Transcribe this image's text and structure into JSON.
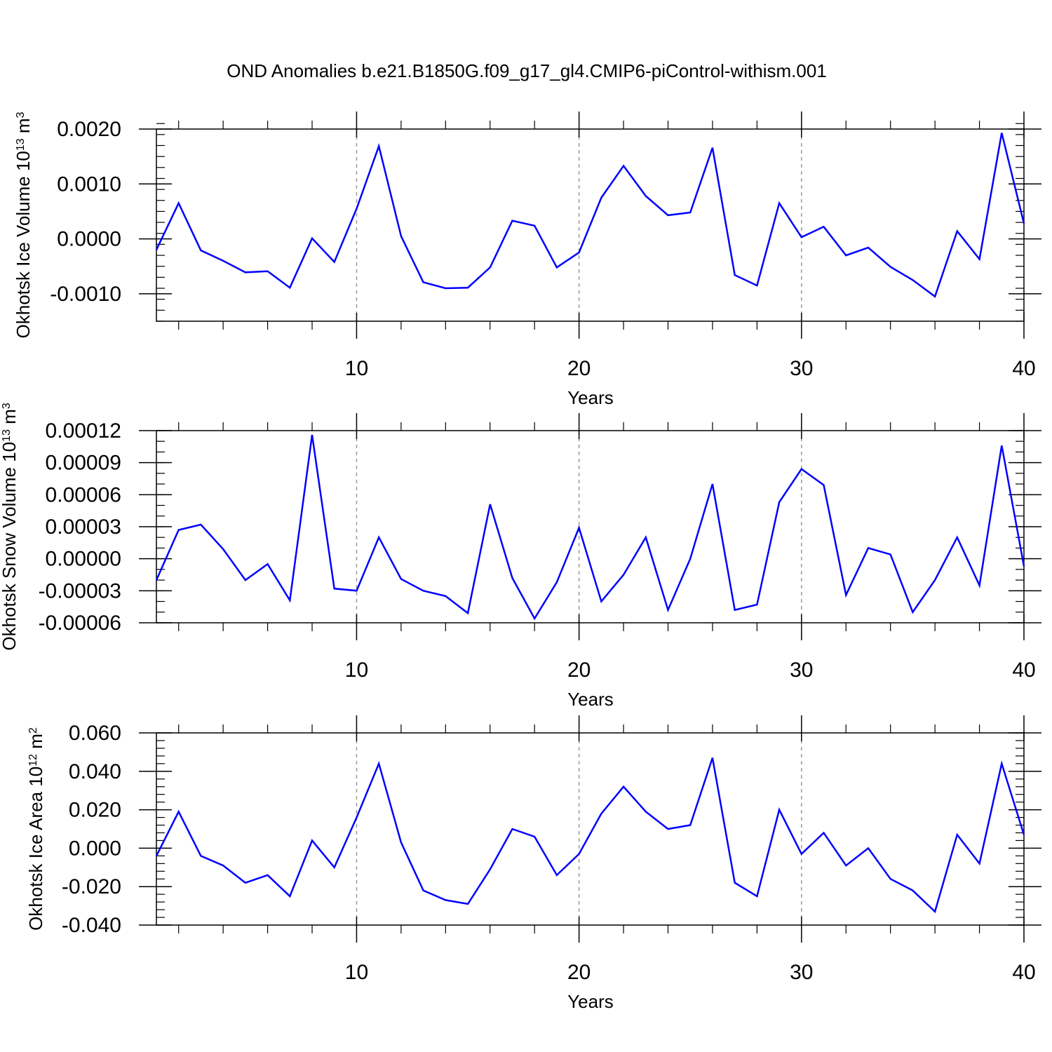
{
  "title": "OND Anomalies b.e21.B1850G.f09_g17_gl4.CMIP6-piControl-withism.001",
  "line_color": "#0000ff",
  "chart_data": [
    {
      "type": "line",
      "xlabel": "Years",
      "ylabel": {
        "text": "Okhotsk Ice Volume 10",
        "exp": "13",
        "unit": " m",
        "unit_exp": "3"
      },
      "xlim": [
        1,
        40
      ],
      "ylim": [
        -0.0015,
        0.002
      ],
      "xticks": [
        10,
        20,
        30,
        40
      ],
      "xtick_labels": [
        "10",
        "20",
        "30",
        "40"
      ],
      "yticks": [
        -0.001,
        0.0,
        0.001,
        0.002
      ],
      "ytick_labels": [
        "-0.0010",
        "0.0000",
        "0.0010",
        "0.0020"
      ],
      "yminor_step": 0.0002,
      "grid_x": [
        10,
        20,
        30
      ],
      "x": [
        1,
        2,
        3,
        4,
        5,
        6,
        7,
        8,
        9,
        10,
        11,
        12,
        13,
        14,
        15,
        16,
        17,
        18,
        19,
        20,
        21,
        22,
        23,
        24,
        25,
        26,
        27,
        28,
        29,
        30,
        31,
        32,
        33,
        34,
        35,
        36,
        37,
        38,
        39,
        40
      ],
      "values": [
        -0.0002,
        0.00065,
        -0.00021,
        -0.0004,
        -0.00061,
        -0.00059,
        -0.00089,
        1e-05,
        -0.00042,
        0.00055,
        0.00169,
        5e-05,
        -0.00079,
        -0.0009,
        -0.00089,
        -0.00052,
        0.00033,
        0.00024,
        -0.00052,
        -0.00025,
        0.00075,
        0.00133,
        0.00078,
        0.00043,
        0.00048,
        0.00166,
        -0.00066,
        -0.00085,
        0.00065,
        3e-05,
        0.00022,
        -0.0003,
        -0.00016,
        -0.00051,
        -0.00075,
        -0.00105,
        0.00014,
        -0.00037,
        0.00193,
        0.00028
      ]
    },
    {
      "type": "line",
      "xlabel": "Years",
      "ylabel": {
        "text": "Okhotsk Snow Volume 10",
        "exp": "13",
        "unit": " m",
        "unit_exp": "3"
      },
      "xlim": [
        1,
        40
      ],
      "ylim": [
        -6e-05,
        0.00012
      ],
      "xticks": [
        10,
        20,
        30,
        40
      ],
      "xtick_labels": [
        "10",
        "20",
        "30",
        "40"
      ],
      "yticks": [
        -6e-05,
        -3e-05,
        0.0,
        3e-05,
        6e-05,
        9e-05,
        0.00012
      ],
      "ytick_labels": [
        "-0.00006",
        "-0.00003",
        "0.00000",
        "0.00003",
        "0.00006",
        "0.00009",
        "0.00012"
      ],
      "yminor_step": 1e-05,
      "grid_x": [
        10,
        20,
        30
      ],
      "x": [
        1,
        2,
        3,
        4,
        5,
        6,
        7,
        8,
        9,
        10,
        11,
        12,
        13,
        14,
        15,
        16,
        17,
        18,
        19,
        20,
        21,
        22,
        23,
        24,
        25,
        26,
        27,
        28,
        29,
        30,
        31,
        32,
        33,
        34,
        35,
        36,
        37,
        38,
        39,
        40
      ],
      "values": [
        -2e-05,
        2.7e-05,
        3.2e-05,
        9e-06,
        -2e-05,
        -5e-06,
        -3.9e-05,
        0.000116,
        -2.8e-05,
        -3e-05,
        2e-05,
        -1.9e-05,
        -3e-05,
        -3.5e-05,
        -5.1e-05,
        5.1e-05,
        -1.8e-05,
        -5.6e-05,
        -2.2e-05,
        2.9e-05,
        -4e-05,
        -1.5e-05,
        2e-05,
        -4.8e-05,
        0.0,
        7e-05,
        -4.8e-05,
        -4.3e-05,
        5.3e-05,
        8.4e-05,
        6.9e-05,
        -3.4e-05,
        1e-05,
        4e-06,
        -5e-05,
        -2e-05,
        2e-05,
        -2.5e-05,
        0.000106,
        -7e-06
      ]
    },
    {
      "type": "line",
      "xlabel": "Years",
      "ylabel": {
        "text": "Okhotsk Ice Area 10",
        "exp": "12",
        "unit": " m",
        "unit_exp": "2"
      },
      "xlim": [
        1,
        40
      ],
      "ylim": [
        -0.04,
        0.06
      ],
      "xticks": [
        10,
        20,
        30,
        40
      ],
      "xtick_labels": [
        "10",
        "20",
        "30",
        "40"
      ],
      "yticks": [
        -0.04,
        -0.02,
        0.0,
        0.02,
        0.04,
        0.06
      ],
      "ytick_labels": [
        "-0.040",
        "-0.020",
        "0.000",
        "0.020",
        "0.040",
        "0.060"
      ],
      "yminor_step": 0.004,
      "grid_x": [
        10,
        20,
        30
      ],
      "x": [
        1,
        2,
        3,
        4,
        5,
        6,
        7,
        8,
        9,
        10,
        11,
        12,
        13,
        14,
        15,
        16,
        17,
        18,
        19,
        20,
        21,
        22,
        23,
        24,
        25,
        26,
        27,
        28,
        29,
        30,
        31,
        32,
        33,
        34,
        35,
        36,
        37,
        38,
        39,
        40
      ],
      "values": [
        -0.004,
        0.019,
        -0.004,
        -0.009,
        -0.018,
        -0.014,
        -0.025,
        0.004,
        -0.01,
        0.016,
        0.044,
        0.003,
        -0.022,
        -0.027,
        -0.029,
        -0.011,
        0.01,
        0.006,
        -0.014,
        -0.003,
        0.018,
        0.032,
        0.019,
        0.01,
        0.012,
        0.047,
        -0.018,
        -0.025,
        0.02,
        -0.003,
        0.008,
        -0.009,
        0.0,
        -0.016,
        -0.022,
        -0.033,
        0.007,
        -0.008,
        0.044,
        0.007
      ]
    }
  ]
}
